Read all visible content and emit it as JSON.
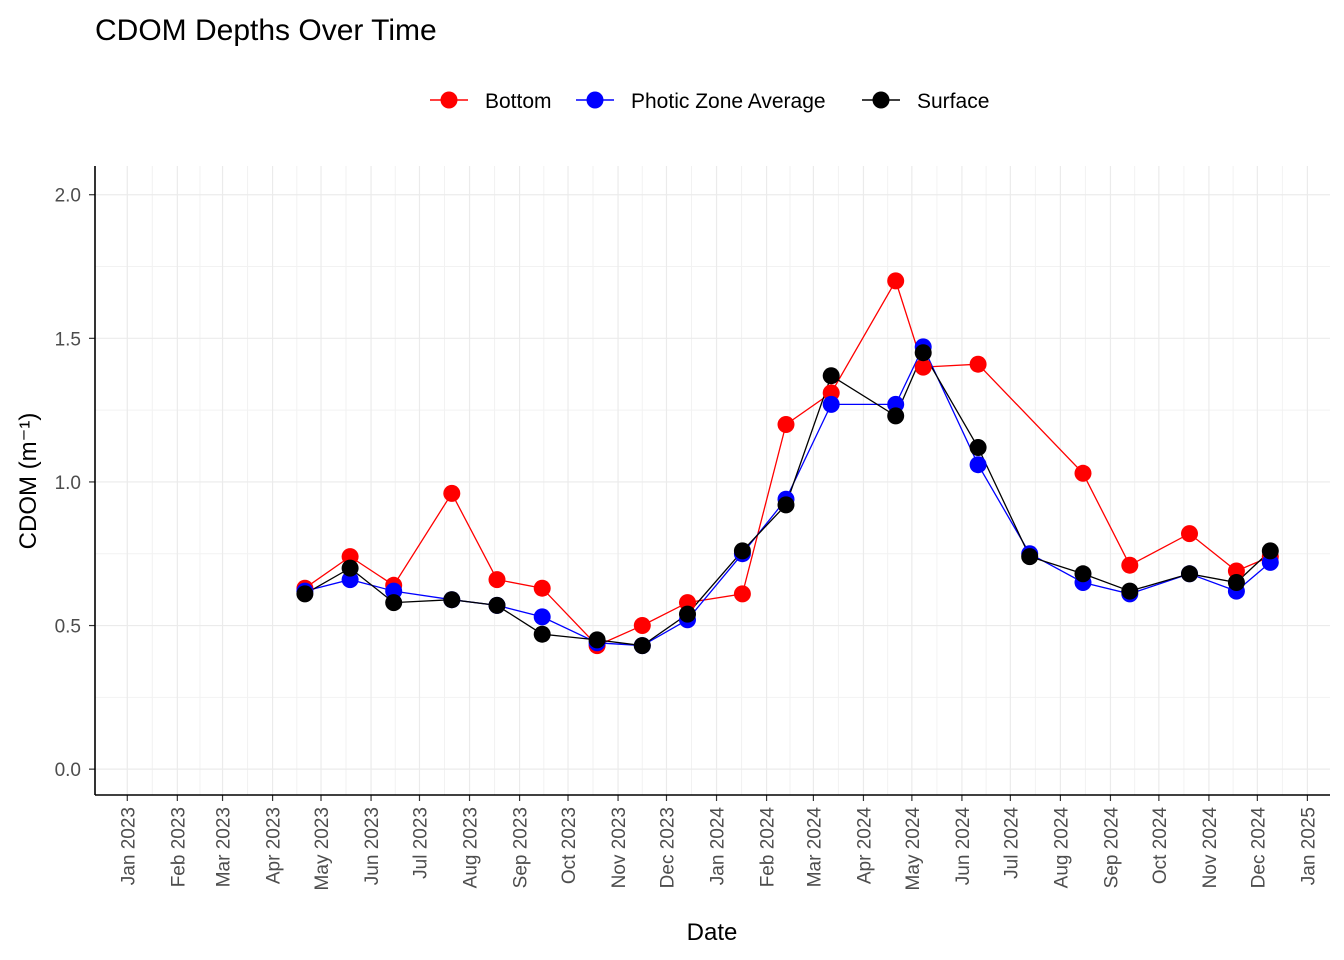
{
  "chart_data": {
    "type": "line",
    "title": "CDOM Depths Over Time",
    "xlabel": "Date",
    "ylabel": "CDOM (m⁻¹)",
    "ylim": [
      -0.09,
      2.1
    ],
    "xlim": [
      "2022-12-12",
      "2025-01-15"
    ],
    "yticks": [
      0.0,
      0.5,
      1.0,
      1.5,
      2.0
    ],
    "ytick_labels": [
      "0.0",
      "0.5",
      "1.0",
      "1.5",
      "2.0"
    ],
    "xticks": [
      "2023-01-01",
      "2023-02-01",
      "2023-03-01",
      "2023-04-01",
      "2023-05-01",
      "2023-06-01",
      "2023-07-01",
      "2023-08-01",
      "2023-09-01",
      "2023-10-01",
      "2023-11-01",
      "2023-12-01",
      "2024-01-01",
      "2024-02-01",
      "2024-03-01",
      "2024-04-01",
      "2024-05-01",
      "2024-06-01",
      "2024-07-01",
      "2024-08-01",
      "2024-09-01",
      "2024-10-01",
      "2024-11-01",
      "2024-12-01",
      "2025-01-01"
    ],
    "xtick_labels": [
      "Jan 2023",
      "Feb 2023",
      "Mar 2023",
      "Apr 2023",
      "May 2023",
      "Jun 2023",
      "Jul 2023",
      "Aug 2023",
      "Sep 2023",
      "Oct 2023",
      "Nov 2023",
      "Dec 2023",
      "Jan 2024",
      "Feb 2024",
      "Mar 2024",
      "Apr 2024",
      "May 2024",
      "Jun 2024",
      "Jul 2024",
      "Aug 2024",
      "Sep 2024",
      "Oct 2024",
      "Nov 2024",
      "Dec 2024",
      "Jan 2025"
    ],
    "grid": true,
    "legend_position": "top",
    "series": [
      {
        "name": "Bottom",
        "color": "#ff0000",
        "points": [
          {
            "x": "2023-04-21",
            "y": 0.63
          },
          {
            "x": "2023-05-19",
            "y": 0.74
          },
          {
            "x": "2023-06-15",
            "y": 0.64
          },
          {
            "x": "2023-07-21",
            "y": 0.96
          },
          {
            "x": "2023-08-18",
            "y": 0.66
          },
          {
            "x": "2023-09-15",
            "y": 0.63
          },
          {
            "x": "2023-10-19",
            "y": 0.43
          },
          {
            "x": "2023-11-16",
            "y": 0.5
          },
          {
            "x": "2023-12-14",
            "y": 0.58
          },
          {
            "x": "2024-01-17",
            "y": 0.61
          },
          {
            "x": "2024-02-13",
            "y": 1.2
          },
          {
            "x": "2024-03-12",
            "y": 1.31
          },
          {
            "x": "2024-04-21",
            "y": 1.7
          },
          {
            "x": "2024-05-08",
            "y": 1.4
          },
          {
            "x": "2024-06-11",
            "y": 1.41
          },
          {
            "x": "2024-08-15",
            "y": 1.03
          },
          {
            "x": "2024-09-13",
            "y": 0.71
          },
          {
            "x": "2024-10-20",
            "y": 0.82
          },
          {
            "x": "2024-11-18",
            "y": 0.69
          },
          {
            "x": "2024-12-09",
            "y": 0.74
          }
        ]
      },
      {
        "name": "Photic Zone Average",
        "color": "#0000ff",
        "points": [
          {
            "x": "2023-04-21",
            "y": 0.62
          },
          {
            "x": "2023-05-19",
            "y": 0.66
          },
          {
            "x": "2023-06-15",
            "y": 0.62
          },
          {
            "x": "2023-07-21",
            "y": 0.59
          },
          {
            "x": "2023-08-18",
            "y": 0.57
          },
          {
            "x": "2023-09-15",
            "y": 0.53
          },
          {
            "x": "2023-10-19",
            "y": 0.44
          },
          {
            "x": "2023-11-16",
            "y": 0.43
          },
          {
            "x": "2023-12-14",
            "y": 0.52
          },
          {
            "x": "2024-01-17",
            "y": 0.75
          },
          {
            "x": "2024-02-13",
            "y": 0.94
          },
          {
            "x": "2024-03-12",
            "y": 1.27
          },
          {
            "x": "2024-04-21",
            "y": 1.27
          },
          {
            "x": "2024-05-08",
            "y": 1.47
          },
          {
            "x": "2024-06-11",
            "y": 1.06
          },
          {
            "x": "2024-07-13",
            "y": 0.75
          },
          {
            "x": "2024-08-15",
            "y": 0.65
          },
          {
            "x": "2024-09-13",
            "y": 0.61
          },
          {
            "x": "2024-10-20",
            "y": 0.68
          },
          {
            "x": "2024-11-18",
            "y": 0.62
          },
          {
            "x": "2024-12-09",
            "y": 0.72
          }
        ]
      },
      {
        "name": "Surface",
        "color": "#000000",
        "points": [
          {
            "x": "2023-04-21",
            "y": 0.61
          },
          {
            "x": "2023-05-19",
            "y": 0.7
          },
          {
            "x": "2023-06-15",
            "y": 0.58
          },
          {
            "x": "2023-07-21",
            "y": 0.59
          },
          {
            "x": "2023-08-18",
            "y": 0.57
          },
          {
            "x": "2023-09-15",
            "y": 0.47
          },
          {
            "x": "2023-10-19",
            "y": 0.45
          },
          {
            "x": "2023-11-16",
            "y": 0.43
          },
          {
            "x": "2023-12-14",
            "y": 0.54
          },
          {
            "x": "2024-01-17",
            "y": 0.76
          },
          {
            "x": "2024-02-13",
            "y": 0.92
          },
          {
            "x": "2024-03-12",
            "y": 1.37
          },
          {
            "x": "2024-04-21",
            "y": 1.23
          },
          {
            "x": "2024-05-08",
            "y": 1.45
          },
          {
            "x": "2024-06-11",
            "y": 1.12
          },
          {
            "x": "2024-07-13",
            "y": 0.74
          },
          {
            "x": "2024-08-15",
            "y": 0.68
          },
          {
            "x": "2024-09-13",
            "y": 0.62
          },
          {
            "x": "2024-10-20",
            "y": 0.68
          },
          {
            "x": "2024-11-18",
            "y": 0.65
          },
          {
            "x": "2024-12-09",
            "y": 0.76
          }
        ]
      }
    ]
  }
}
